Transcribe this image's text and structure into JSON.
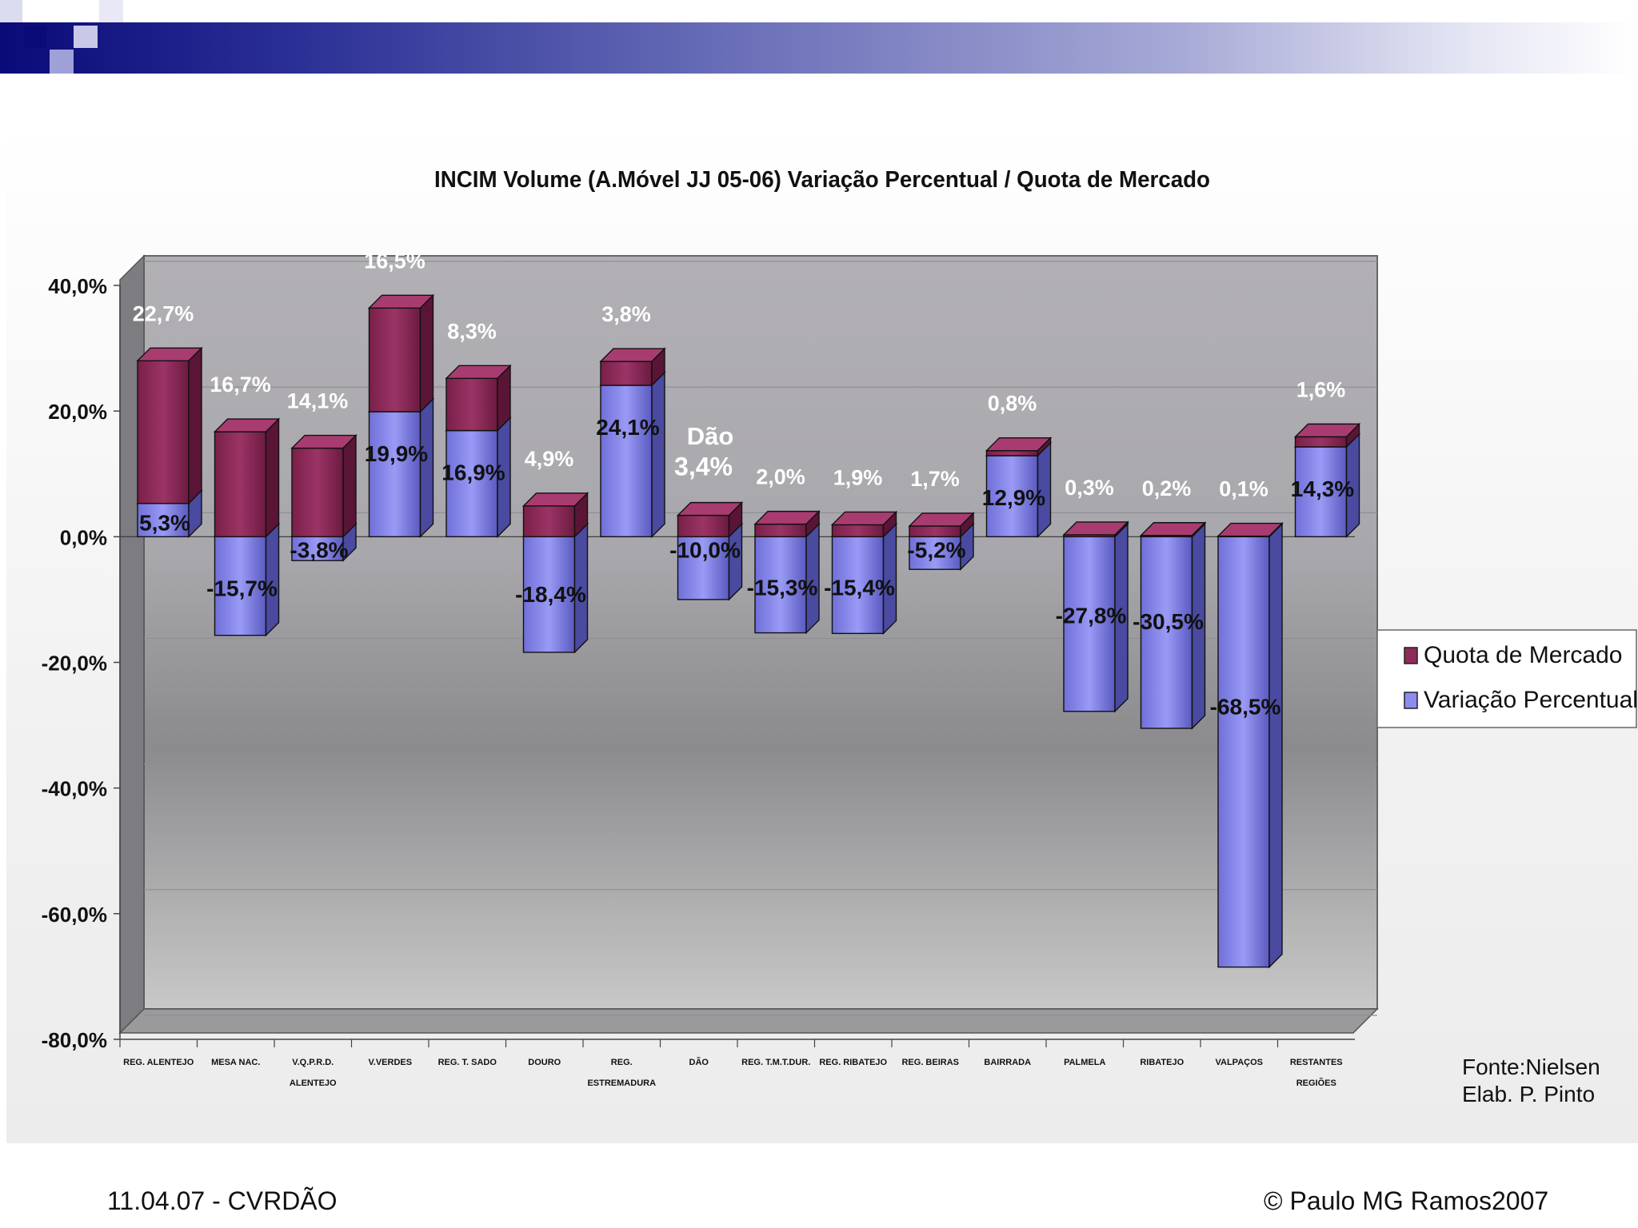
{
  "slide": {
    "footer_left": "11.04.07 - CVRDÃO",
    "footer_right": "© Paulo MG Ramos2007",
    "source_line1": "Fonte:Nielsen",
    "source_line2": "Elab. P. Pinto",
    "callout": "Dão"
  },
  "colors": {
    "quota": "#8e2b5a",
    "variacao": "#8c8cf0",
    "header_dark": "#0a0a78"
  },
  "chart_data": {
    "type": "bar",
    "title": "INCIM Volume (A.Móvel JJ 05-06) Variação Percentual / Quota de Mercado",
    "xlabel": "",
    "ylabel": "",
    "ylim": [
      -80,
      40
    ],
    "yticks": [
      40,
      20,
      0,
      -20,
      -40,
      -60,
      -80
    ],
    "ytick_labels": [
      "40,0%",
      "20,0%",
      "0,0%",
      "-20,0%",
      "-40,0%",
      "-60,0%",
      "-80,0%"
    ],
    "grid": true,
    "legend_position": "right",
    "categories": [
      "Reg. Alentejo",
      "Mesa Nac.",
      "V.Q.P.R.D. Alentejo",
      "V.Verdes",
      "Reg. T. Sado",
      "Douro",
      "Reg. Estremadura",
      "Dão",
      "Reg. T.M.T.Dur.",
      "Reg. Ribatejo",
      "Reg. Beiras",
      "Bairrada",
      "Palmela",
      "Ribatejo",
      "Valpaços",
      "Restantes Regiões"
    ],
    "category_labels": [
      [
        "REG. ALENTEJO"
      ],
      [
        "MESA NAC."
      ],
      [
        "V.Q.P.R.D.",
        "ALENTEJO"
      ],
      [
        "V.VERDES"
      ],
      [
        "REG. T. SADO"
      ],
      [
        "DOURO"
      ],
      [
        "REG.",
        "ESTREMADURA"
      ],
      [
        "DÃO"
      ],
      [
        "REG. T.M.T.DUR."
      ],
      [
        "REG. RIBATEJO"
      ],
      [
        "REG. BEIRAS"
      ],
      [
        "BAIRRADA"
      ],
      [
        "PALMELA"
      ],
      [
        "RIBATEJO"
      ],
      [
        "VALPAÇOS"
      ],
      [
        "RESTANTES",
        "REGIÕES"
      ]
    ],
    "series": [
      {
        "name": "Variação Percentual",
        "values": [
          5.3,
          -15.7,
          -3.8,
          19.9,
          16.9,
          -18.4,
          24.1,
          -10.0,
          -15.3,
          -15.4,
          -5.2,
          12.9,
          -27.8,
          -30.5,
          -68.5,
          14.3
        ],
        "labels": [
          "5,3%",
          "-15,7%",
          "-3,8%",
          "19,9%",
          "16,9%",
          "-18,4%",
          "24,1%",
          "-10,0%",
          "-15,3%",
          "-15,4%",
          "-5,2%",
          "12,9%",
          "-27,8%",
          "-30,5%",
          "-68,5%",
          "14,3%"
        ]
      },
      {
        "name": "Quota de Mercado",
        "values": [
          22.7,
          16.7,
          14.1,
          16.5,
          8.3,
          4.9,
          3.8,
          3.4,
          2.0,
          1.9,
          1.7,
          0.8,
          0.3,
          0.2,
          0.1,
          1.6
        ],
        "labels": [
          "22,7%",
          "16,7%",
          "14,1%",
          "16,5%",
          "8,3%",
          "4,9%",
          "3,8%",
          "3,4%",
          "2,0%",
          "1,9%",
          "1,7%",
          "0,8%",
          "0,3%",
          "0,2%",
          "0,1%",
          "1,6%"
        ]
      }
    ]
  }
}
